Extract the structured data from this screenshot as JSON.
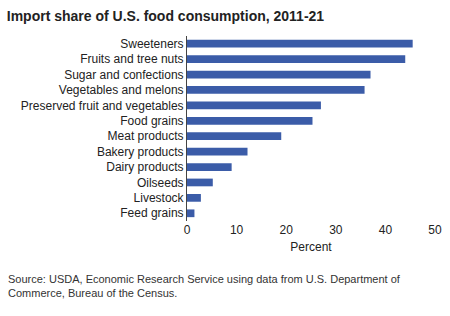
{
  "chart_data": {
    "type": "bar",
    "orientation": "horizontal",
    "title": "Import share of U.S. food consumption, 2011-21",
    "categories": [
      "Sweeteners",
      "Fruits and tree nuts",
      "Sugar and confections",
      "Vegetables and melons",
      "Preserved fruit and vegetables",
      "Food grains",
      "Meat products",
      "Bakery products",
      "Dairy products",
      "Oilseeds",
      "Livestock",
      "Feed grains"
    ],
    "values": [
      45.5,
      44,
      37,
      35.8,
      27,
      25.3,
      19,
      12.2,
      9,
      5.2,
      2.8,
      1.5
    ],
    "color": "#3b5ca8",
    "xlabel": "Percent",
    "xlim": [
      0,
      50
    ],
    "xticks": [
      0,
      10,
      20,
      30,
      40,
      50
    ],
    "grid": false,
    "note": "Source: USDA, Economic Research Service using data from U.S. Department of Commerce, Bureau of the Census."
  }
}
